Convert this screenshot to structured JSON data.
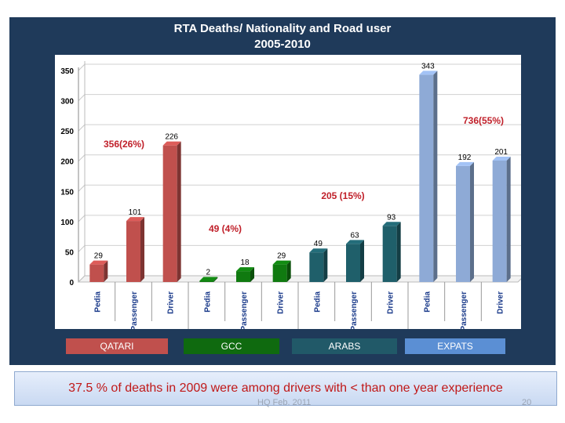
{
  "chart_data": {
    "type": "bar",
    "title": "RTA Deaths/ Nationality and Road user",
    "subtitle": "2005-2010",
    "categories": [
      "Pedia",
      "Passenger",
      "Driver",
      "Pedia",
      "Passenger",
      "Driver",
      "Pedia",
      "Passenger",
      "Driver",
      "Pedia",
      "Passenger",
      "Driver"
    ],
    "values": [
      29,
      101,
      226,
      2,
      18,
      29,
      49,
      63,
      93,
      343,
      192,
      201
    ],
    "groups": [
      {
        "name": "Qatari",
        "label": "QATARI",
        "total_label": "356(26%)",
        "color": "#c0504d",
        "banner_color": "#c0504d"
      },
      {
        "name": "GCC",
        "label": "GCC",
        "total_label": "49 (4%)",
        "color": "#107a10",
        "banner_color": "#0f6a0f"
      },
      {
        "name": "ARAB",
        "label": "ARABS",
        "total_label": "205 (15%)",
        "color": "#1f5f6a",
        "banner_color": "#215968"
      },
      {
        "name": "EXPATs",
        "label": "EXPATS",
        "total_label": "736(55%)",
        "color": "#8eaad6",
        "banner_color": "#5b8fd4"
      }
    ],
    "ylim": [
      0,
      350
    ],
    "yticks": [
      0,
      50,
      100,
      150,
      200,
      250,
      300,
      350
    ],
    "grid": true,
    "annotation_color": "#c0202a"
  },
  "banner_text": "37.5 % of  deaths in 2009 were among drivers with < than one year experience",
  "footer_left": "HQ Feb. 2011",
  "footer_right": "20"
}
